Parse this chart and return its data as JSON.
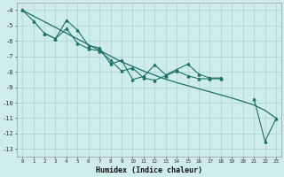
{
  "xlabel": "Humidex (Indice chaleur)",
  "background_color": "#ceecea",
  "grid_color": "#afd8d4",
  "line_color": "#1e7068",
  "xlim": [
    -0.5,
    23.5
  ],
  "ylim": [
    -13.5,
    -3.5
  ],
  "yticks": [
    -13,
    -12,
    -11,
    -10,
    -9,
    -8,
    -7,
    -6,
    -5,
    -4
  ],
  "x": [
    0,
    1,
    2,
    3,
    4,
    5,
    6,
    7,
    8,
    9,
    10,
    11,
    12,
    13,
    14,
    15,
    16,
    17,
    18,
    19,
    20,
    21,
    22,
    23
  ],
  "line1": [
    -4.0,
    -4.7,
    -5.5,
    -5.85,
    -4.65,
    -5.3,
    -6.3,
    -6.45,
    -7.5,
    -7.25,
    -8.5,
    -8.3,
    -7.55,
    -8.2,
    -7.85,
    -7.5,
    -8.15,
    -8.4,
    -8.4,
    null,
    null,
    -9.75,
    -12.5,
    -11.05
  ],
  "line2": [
    -4.0,
    null,
    -5.5,
    -5.85,
    -5.2,
    -6.15,
    -6.5,
    -6.65,
    -7.25,
    -7.95,
    -7.75,
    -8.4,
    -8.55,
    -8.25,
    -7.95,
    -8.25,
    -8.45,
    -8.45,
    -8.45,
    null,
    null,
    null,
    null,
    null
  ],
  "trend": [
    -4.0,
    -4.38,
    -4.75,
    -5.12,
    -5.5,
    -5.87,
    -6.24,
    -6.61,
    -6.98,
    -7.35,
    -7.65,
    -7.95,
    -8.22,
    -8.48,
    -8.7,
    -8.9,
    -9.1,
    -9.3,
    -9.5,
    -9.7,
    -9.92,
    -10.15,
    -10.5,
    -11.0
  ]
}
